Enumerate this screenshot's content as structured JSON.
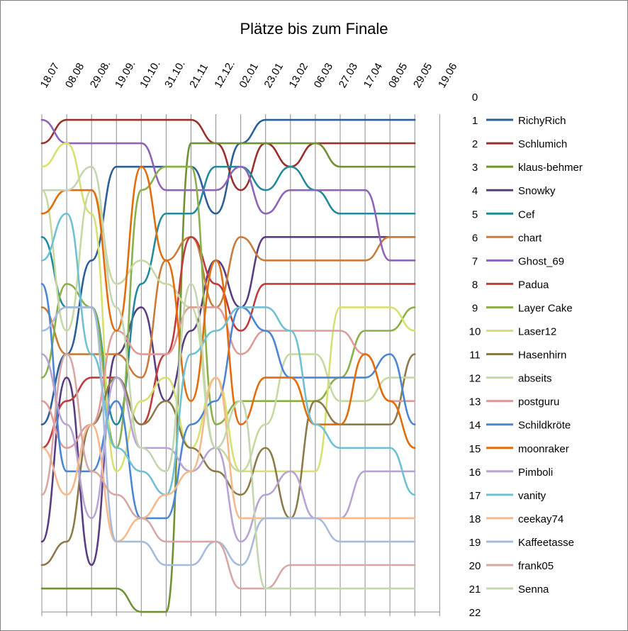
{
  "chart_data": {
    "type": "line",
    "title": "Plätze bis zum Finale",
    "x_ticks": [
      "18.07",
      "08.08",
      "29.08.",
      "19.09.",
      "10.10.",
      "31.10.",
      "21.11",
      "12.12.",
      "02.01",
      "23.01",
      "13.02",
      "06.03",
      "27.03",
      "17.04",
      "08.05",
      "29.05",
      "19.06"
    ],
    "y_ticks": [
      "0",
      "1",
      "2",
      "3",
      "4",
      "5",
      "6",
      "7",
      "8",
      "9",
      "10",
      "11",
      "12",
      "13",
      "14",
      "15",
      "16",
      "17",
      "18",
      "19",
      "20",
      "21",
      "22"
    ],
    "ylim": [
      22,
      0
    ],
    "y_reversed": true,
    "legend_position": "right",
    "grid": "vertical",
    "series": [
      {
        "name": "RichyRich",
        "color": "#2c5e98",
        "ranks": [
          14,
          11,
          7,
          3,
          3,
          3,
          3,
          5,
          2,
          1,
          1,
          1,
          1,
          1,
          1,
          1
        ]
      },
      {
        "name": "Schlumich",
        "color": "#98302c",
        "ranks": [
          2,
          1,
          1,
          1,
          1,
          1,
          1,
          2,
          4,
          2,
          3,
          2,
          2,
          2,
          2,
          2
        ]
      },
      {
        "name": "klaus-behmer",
        "color": "#6f9333",
        "ranks": [
          21,
          21,
          21,
          21,
          22,
          22,
          2,
          2,
          2,
          2,
          2,
          2,
          3,
          3,
          3,
          3
        ]
      },
      {
        "name": "Snowky",
        "color": "#5a3c82",
        "ranks": [
          19,
          12,
          20,
          11,
          9,
          13,
          10,
          7,
          9,
          6,
          6,
          6,
          6,
          6,
          6,
          6
        ]
      },
      {
        "name": "Cef",
        "color": "#25899e",
        "ranks": [
          6,
          9,
          9,
          14,
          8,
          5,
          5,
          3,
          3,
          4,
          3,
          4,
          5,
          5,
          5,
          5
        ]
      },
      {
        "name": "chart",
        "color": "#c97b3a",
        "ranks": [
          9,
          11,
          11,
          11,
          12,
          7,
          6,
          9,
          6,
          7,
          7,
          7,
          7,
          7,
          6,
          6
        ]
      },
      {
        "name": "Ghost_69",
        "color": "#8f63b8",
        "ranks": [
          1,
          2,
          2,
          2,
          2,
          4,
          4,
          4,
          3,
          5,
          4,
          4,
          4,
          4,
          7,
          7
        ]
      },
      {
        "name": "Padua",
        "color": "#c23b3b",
        "ranks": [
          15,
          13,
          12,
          12,
          14,
          11,
          6,
          8,
          10,
          8,
          8,
          8,
          8,
          8,
          8,
          8
        ]
      },
      {
        "name": "Layer Cake",
        "color": "#8ab04a",
        "ranks": [
          12,
          8,
          9,
          15,
          4,
          3,
          3,
          14,
          13,
          13,
          13,
          13,
          12,
          10,
          10,
          9
        ]
      },
      {
        "name": "Laser12",
        "color": "#d6e16f",
        "ranks": [
          3,
          2,
          5,
          16,
          13,
          12,
          15,
          12,
          16,
          16,
          16,
          16,
          9,
          9,
          9,
          10
        ]
      },
      {
        "name": "Hasenhirn",
        "color": "#8c7a4a",
        "ranks": [
          20,
          19,
          14,
          12,
          14,
          13,
          15,
          16,
          17,
          15,
          18,
          13,
          14,
          14,
          14,
          11
        ]
      },
      {
        "name": "abseits",
        "color": "#c5d9a0",
        "ranks": [
          4,
          10,
          4,
          8,
          7,
          8,
          9,
          15,
          16,
          14,
          11,
          11,
          13,
          13,
          12,
          12
        ]
      },
      {
        "name": "postguru",
        "color": "#e09a98",
        "ranks": [
          13,
          15,
          14,
          10,
          11,
          11,
          9,
          9,
          11,
          10,
          10,
          10,
          10,
          11,
          13,
          13
        ]
      },
      {
        "name": "Schildkröte",
        "color": "#4b86d6",
        "ranks": [
          8,
          16,
          16,
          13,
          18,
          18,
          14,
          13,
          9,
          10,
          12,
          12,
          12,
          12,
          11,
          14
        ]
      },
      {
        "name": "moonraker",
        "color": "#e46c0a",
        "ranks": [
          5,
          4,
          4,
          10,
          3,
          7,
          13,
          7,
          14,
          12,
          12,
          14,
          14,
          11,
          13,
          15
        ]
      },
      {
        "name": "Pimboli",
        "color": "#b7a4d6",
        "ranks": [
          11,
          14,
          18,
          12,
          15,
          15,
          16,
          15,
          19,
          17,
          16,
          18,
          18,
          16,
          16,
          16
        ]
      },
      {
        "name": "vanity",
        "color": "#6fc0d4",
        "ranks": [
          7,
          5,
          11,
          15,
          16,
          17,
          11,
          10,
          9,
          9,
          10,
          14,
          15,
          15,
          15,
          17
        ]
      },
      {
        "name": "ceekay74",
        "color": "#f7b98a",
        "ranks": [
          15,
          17,
          14,
          19,
          18,
          17,
          16,
          12,
          18,
          18,
          18,
          18,
          18,
          18,
          18,
          18
        ]
      },
      {
        "name": "Kaffeetasse",
        "color": "#a7bcdc",
        "ranks": [
          10,
          9,
          9,
          19,
          19,
          20,
          20,
          19,
          20,
          18,
          18,
          18,
          19,
          19,
          19,
          19
        ]
      },
      {
        "name": "frank05",
        "color": "#d7a7a5",
        "ranks": [
          17,
          11,
          16,
          17,
          18,
          19,
          19,
          19,
          21,
          21,
          20,
          20,
          20,
          20,
          20,
          20
        ]
      },
      {
        "name": "Senna",
        "color": "#c4d6b0",
        "ranks": [
          4,
          4,
          3,
          9,
          15,
          16,
          8,
          15,
          13,
          21,
          21,
          21,
          21,
          21,
          21,
          21
        ]
      }
    ]
  }
}
